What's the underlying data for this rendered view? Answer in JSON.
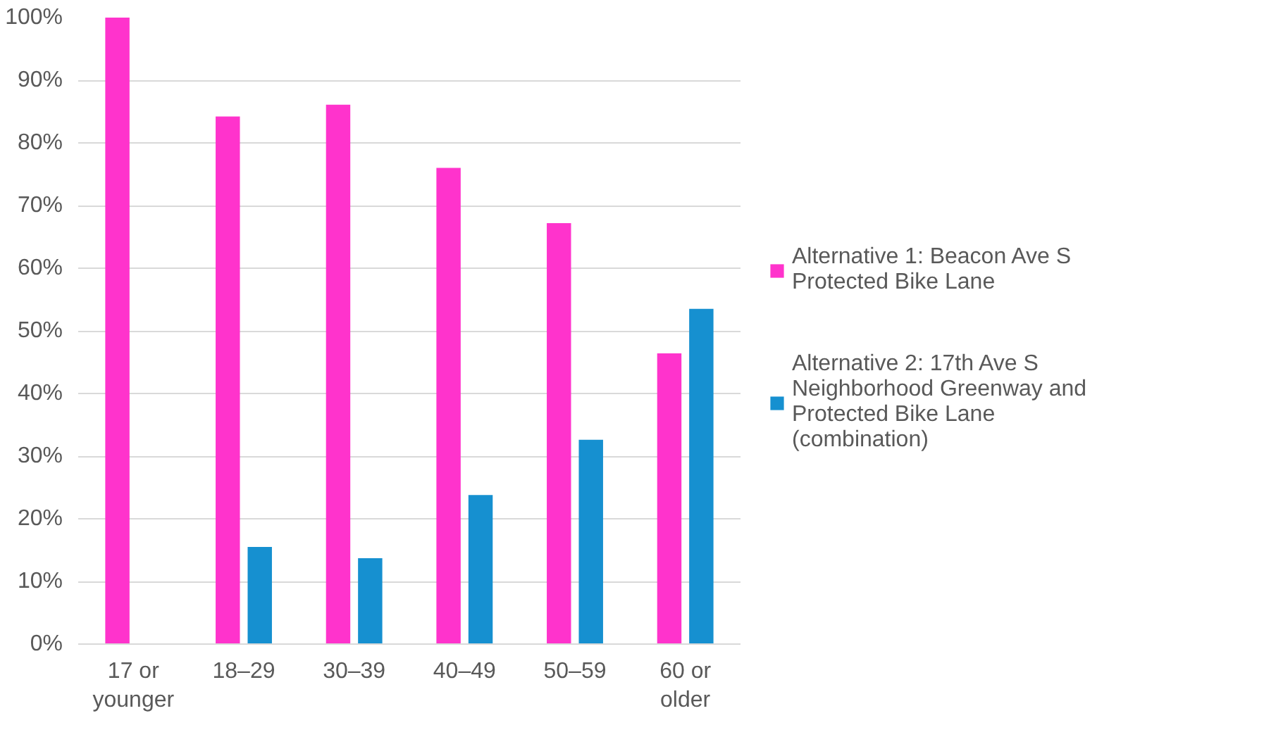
{
  "chart_data": {
    "type": "bar",
    "categories": [
      "17 or younger",
      "18–29",
      "30–39",
      "40–49",
      "50–59",
      "60 or older"
    ],
    "series": [
      {
        "name": "Alternative 1: Beacon Ave S Protected Bike Lane",
        "color": "#ff33cc",
        "values": [
          100,
          84.2,
          86.1,
          76,
          67.2,
          46.4
        ]
      },
      {
        "name": "Alternative 2: 17th Ave S Neighborhood Greenway and Protected Bike Lane (combination)",
        "color": "#1690d0",
        "values": [
          0,
          15.5,
          13.7,
          23.8,
          32.6,
          53.5
        ]
      }
    ],
    "ylim": [
      0,
      100
    ],
    "yticks": [
      {
        "value": 0,
        "label": "0%"
      },
      {
        "value": 10,
        "label": "10%"
      },
      {
        "value": 20,
        "label": "20%"
      },
      {
        "value": 30,
        "label": "30%"
      },
      {
        "value": 40,
        "label": "40%"
      },
      {
        "value": 50,
        "label": "50%"
      },
      {
        "value": 60,
        "label": "60%"
      },
      {
        "value": 70,
        "label": "70%"
      },
      {
        "value": 80,
        "label": "80%"
      },
      {
        "value": 90,
        "label": "90%"
      },
      {
        "value": 100,
        "label": "100%"
      }
    ],
    "grid": "y",
    "legend": "right"
  }
}
